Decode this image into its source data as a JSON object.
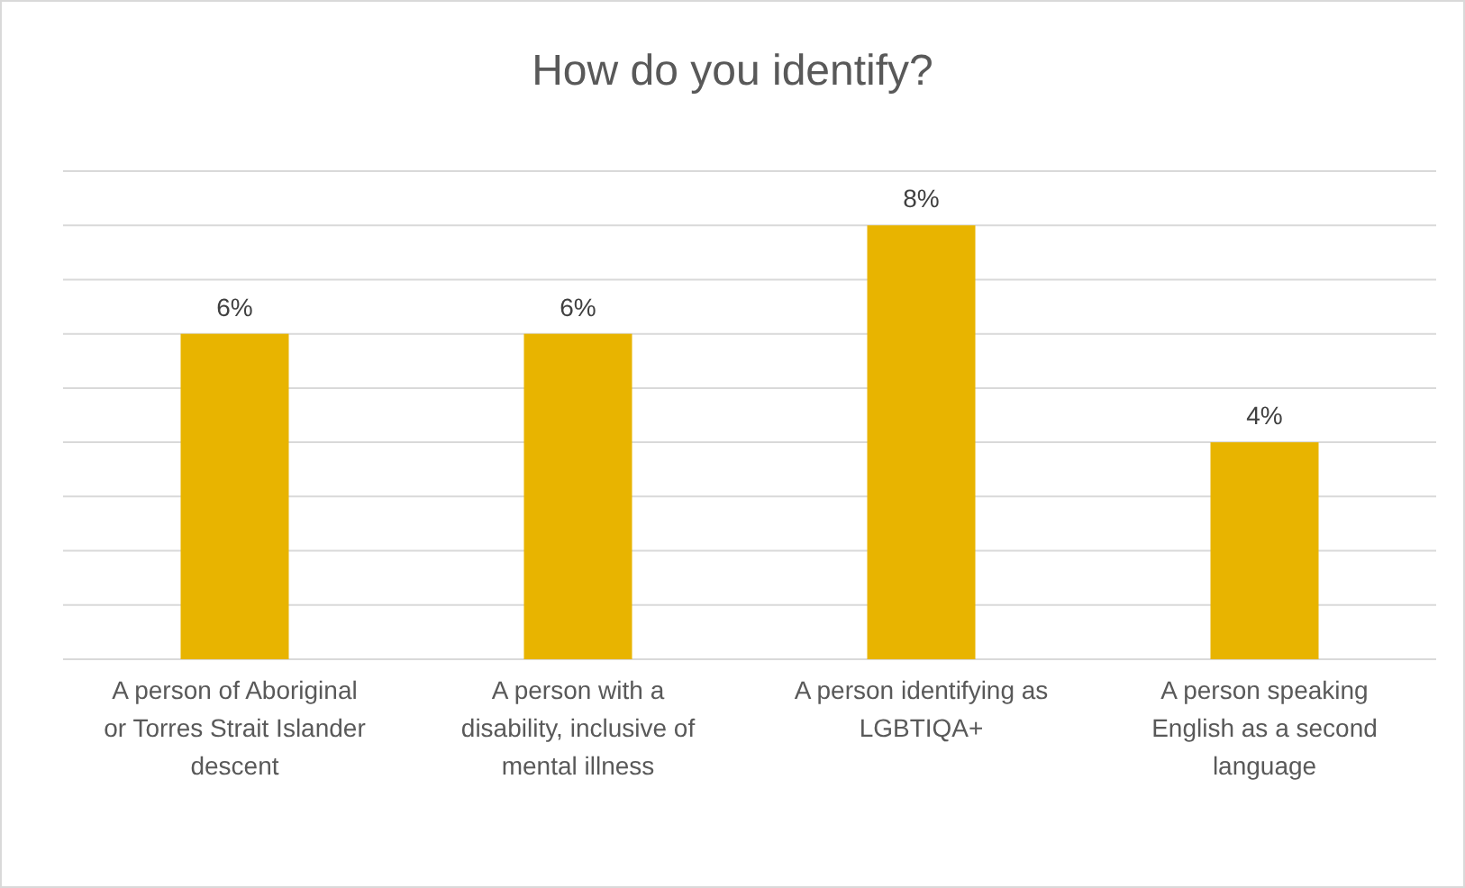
{
  "chart_data": {
    "type": "bar",
    "title": "How do you identify?",
    "categories": [
      "A person of Aboriginal or Torres Strait Islander descent",
      "A person with a disability, inclusive of mental illness",
      "A person identifying as LGBTIQA+",
      "A person speaking English as a second language"
    ],
    "values": [
      6,
      6,
      8,
      4
    ],
    "color": "#e8b400",
    "value_labels": [
      "6%",
      "6%",
      "8%",
      "4%"
    ],
    "ylim": [
      0,
      9
    ],
    "yticks": [
      {
        "value": 0,
        "label": null
      },
      {
        "value": 1,
        "label": null
      },
      {
        "value": 2,
        "label": null
      },
      {
        "value": 3,
        "label": null
      },
      {
        "value": 4,
        "label": null
      },
      {
        "value": 5,
        "label": null
      },
      {
        "value": 6,
        "label": null
      },
      {
        "value": 7,
        "label": null
      },
      {
        "value": 8,
        "label": null
      },
      {
        "value": 9,
        "label": null
      }
    ],
    "tick_labels": "x",
    "grid": "y"
  }
}
